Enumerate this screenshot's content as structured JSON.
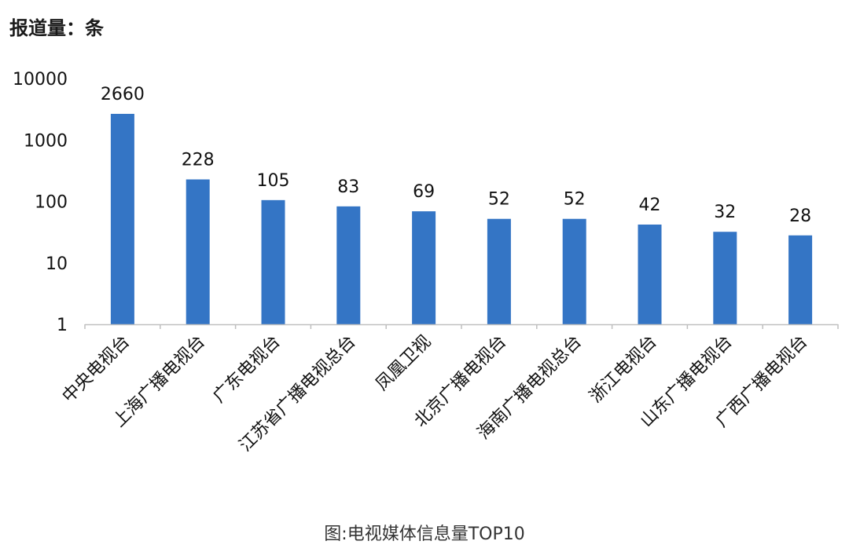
{
  "unit_label": "报道量：条",
  "caption": "图:电视媒体信息量TOP10",
  "chart_data": {
    "type": "bar",
    "categories": [
      "中央电视台",
      "上海广播电视台",
      "广东电视台",
      "江苏省广播电视总台",
      "凤凰卫视",
      "北京广播电视台",
      "海南广播电视总台",
      "浙江电视台",
      "山东广播电视台",
      "广西广播电视台"
    ],
    "values": [
      2660,
      228,
      105,
      83,
      69,
      52,
      52,
      42,
      32,
      28
    ],
    "y_scale": "log",
    "ylim": [
      1,
      10000
    ],
    "yticks": [
      1,
      10,
      100,
      1000,
      10000
    ],
    "ytick_labels": [
      "1",
      "10",
      "100",
      "1000",
      "10000"
    ],
    "bar_color": "#3475c5",
    "grid": false,
    "data_labels": true
  }
}
